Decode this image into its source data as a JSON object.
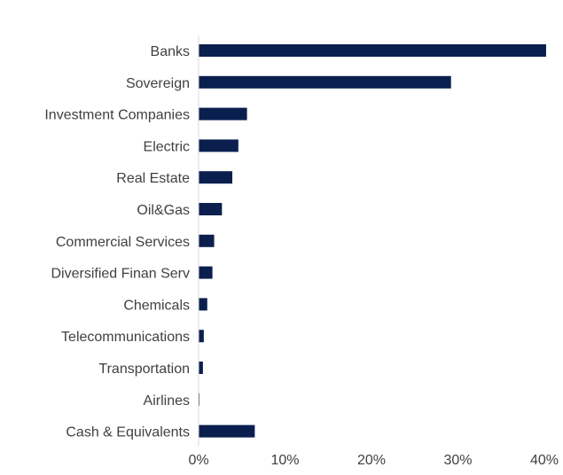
{
  "chart_data": {
    "type": "bar",
    "orientation": "horizontal",
    "title": "",
    "xlabel": "",
    "ylabel": "",
    "categories": [
      "Banks",
      "Sovereign",
      "Investment Companies",
      "Electric",
      "Real Estate",
      "Oil&Gas",
      "Commercial Services",
      "Diversified Finan Serv",
      "Chemicals",
      "Telecommunications",
      "Transportation",
      "Airlines",
      "Cash & Equivalents"
    ],
    "values": [
      40.2,
      29.2,
      5.6,
      4.6,
      3.9,
      2.7,
      1.8,
      1.6,
      1.0,
      0.6,
      0.5,
      0.1,
      6.5
    ],
    "xlim": [
      0,
      40
    ],
    "x_ticks": [
      0,
      10,
      20,
      30,
      40
    ],
    "x_tick_labels": [
      "0%",
      "10%",
      "20%",
      "30%",
      "40%"
    ],
    "grid": false,
    "legend": "none",
    "colors": {
      "bar": "#0b1f4f",
      "axis": "#d9d9d9",
      "text": "#404040"
    }
  }
}
